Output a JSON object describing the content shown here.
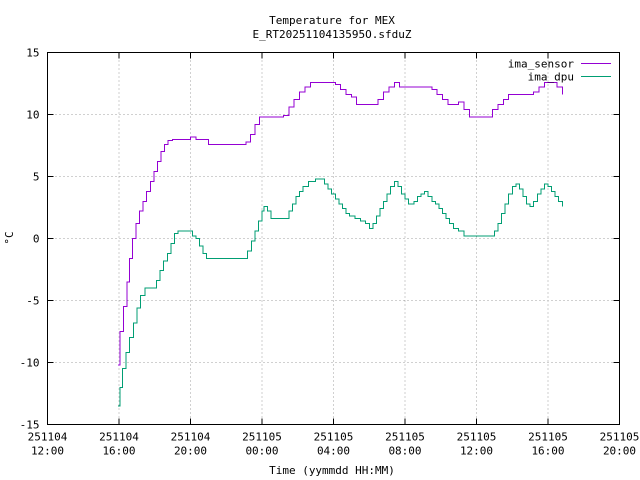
{
  "chart_data": {
    "type": "line",
    "title": "Temperature for MEX",
    "subtitle": "E_RT2025110413595O.sfduZ",
    "xlabel": "Time (yymmdd HH:MM)",
    "ylabel": "°C",
    "x_unit": "hours since 251104 12:00",
    "xlim": [
      0,
      32
    ],
    "ylim": [
      -15,
      15
    ],
    "grid": true,
    "legend_position": "top-right",
    "x_ticks": [
      {
        "v": 0,
        "date": "251104",
        "time": "12:00"
      },
      {
        "v": 4,
        "date": "251104",
        "time": "16:00"
      },
      {
        "v": 8,
        "date": "251104",
        "time": "20:00"
      },
      {
        "v": 12,
        "date": "251105",
        "time": "00:00"
      },
      {
        "v": 16,
        "date": "251105",
        "time": "04:00"
      },
      {
        "v": 20,
        "date": "251105",
        "time": "08:00"
      },
      {
        "v": 24,
        "date": "251105",
        "time": "12:00"
      },
      {
        "v": 28,
        "date": "251105",
        "time": "16:00"
      },
      {
        "v": 32,
        "date": "251105",
        "time": "20:00"
      }
    ],
    "y_ticks": [
      -15,
      -10,
      -5,
      0,
      5,
      10,
      15
    ],
    "series": [
      {
        "name": "ima_sensor",
        "color": "#9400d3",
        "points": [
          [
            3.95,
            -10.2
          ],
          [
            4.05,
            -7.5
          ],
          [
            4.25,
            -5.5
          ],
          [
            4.45,
            -3.5
          ],
          [
            4.6,
            -1.6
          ],
          [
            4.75,
            0
          ],
          [
            4.95,
            1.2
          ],
          [
            5.15,
            2.2
          ],
          [
            5.35,
            3.0
          ],
          [
            5.55,
            3.8
          ],
          [
            5.75,
            4.6
          ],
          [
            5.95,
            5.4
          ],
          [
            6.15,
            6.2
          ],
          [
            6.35,
            7.0
          ],
          [
            6.55,
            7.6
          ],
          [
            6.75,
            7.9
          ],
          [
            7.0,
            8.0
          ],
          [
            7.4,
            8.0
          ],
          [
            7.8,
            8.0
          ],
          [
            8.0,
            8.2
          ],
          [
            8.3,
            8.0
          ],
          [
            8.6,
            8.0
          ],
          [
            9.0,
            7.6
          ],
          [
            9.6,
            7.6
          ],
          [
            10.2,
            7.6
          ],
          [
            10.8,
            7.6
          ],
          [
            11.1,
            7.8
          ],
          [
            11.35,
            8.4
          ],
          [
            11.6,
            9.2
          ],
          [
            11.85,
            9.8
          ],
          [
            12.3,
            9.8
          ],
          [
            12.8,
            9.8
          ],
          [
            13.2,
            9.9
          ],
          [
            13.5,
            10.6
          ],
          [
            13.8,
            11.2
          ],
          [
            14.1,
            11.8
          ],
          [
            14.4,
            12.2
          ],
          [
            14.7,
            12.6
          ],
          [
            15.2,
            12.6
          ],
          [
            15.8,
            12.6
          ],
          [
            16.1,
            12.4
          ],
          [
            16.4,
            12.0
          ],
          [
            16.7,
            11.6
          ],
          [
            17.0,
            11.4
          ],
          [
            17.3,
            10.8
          ],
          [
            17.8,
            10.8
          ],
          [
            18.2,
            10.8
          ],
          [
            18.5,
            11.2
          ],
          [
            18.8,
            11.8
          ],
          [
            19.1,
            12.2
          ],
          [
            19.4,
            12.6
          ],
          [
            19.7,
            12.2
          ],
          [
            20.2,
            12.2
          ],
          [
            20.8,
            12.2
          ],
          [
            21.2,
            12.2
          ],
          [
            21.5,
            12.0
          ],
          [
            21.8,
            11.6
          ],
          [
            22.1,
            11.2
          ],
          [
            22.4,
            10.8
          ],
          [
            22.7,
            10.8
          ],
          [
            23.0,
            11.0
          ],
          [
            23.3,
            10.4
          ],
          [
            23.6,
            9.8
          ],
          [
            24.2,
            9.8
          ],
          [
            24.6,
            9.8
          ],
          [
            24.9,
            10.4
          ],
          [
            25.2,
            10.8
          ],
          [
            25.5,
            11.2
          ],
          [
            25.8,
            11.6
          ],
          [
            26.3,
            11.6
          ],
          [
            26.8,
            11.6
          ],
          [
            27.2,
            11.8
          ],
          [
            27.5,
            12.2
          ],
          [
            27.8,
            12.6
          ],
          [
            28.2,
            12.6
          ],
          [
            28.5,
            12.2
          ],
          [
            28.8,
            11.6
          ]
        ]
      },
      {
        "name": "ima_dpu",
        "color": "#009e73",
        "points": [
          [
            3.95,
            -13.5
          ],
          [
            4.05,
            -12.0
          ],
          [
            4.2,
            -10.5
          ],
          [
            4.4,
            -9.2
          ],
          [
            4.6,
            -8.0
          ],
          [
            4.8,
            -6.8
          ],
          [
            5.0,
            -5.6
          ],
          [
            5.2,
            -4.6
          ],
          [
            5.45,
            -4.0
          ],
          [
            5.8,
            -4.0
          ],
          [
            6.1,
            -3.4
          ],
          [
            6.3,
            -2.6
          ],
          [
            6.5,
            -1.8
          ],
          [
            6.7,
            -1.2
          ],
          [
            6.9,
            -0.4
          ],
          [
            7.1,
            0.4
          ],
          [
            7.3,
            0.6
          ],
          [
            7.6,
            0.6
          ],
          [
            7.9,
            0.6
          ],
          [
            8.1,
            0.2
          ],
          [
            8.3,
            0
          ],
          [
            8.5,
            -0.6
          ],
          [
            8.7,
            -1.2
          ],
          [
            8.9,
            -1.6
          ],
          [
            9.4,
            -1.6
          ],
          [
            10.0,
            -1.6
          ],
          [
            10.6,
            -1.6
          ],
          [
            11.0,
            -1.6
          ],
          [
            11.2,
            -1.0
          ],
          [
            11.4,
            -0.2
          ],
          [
            11.6,
            0.6
          ],
          [
            11.8,
            1.4
          ],
          [
            12.0,
            2.2
          ],
          [
            12.1,
            2.6
          ],
          [
            12.3,
            2.2
          ],
          [
            12.5,
            1.6
          ],
          [
            13.0,
            1.6
          ],
          [
            13.3,
            1.6
          ],
          [
            13.5,
            2.2
          ],
          [
            13.7,
            2.8
          ],
          [
            13.9,
            3.4
          ],
          [
            14.1,
            3.8
          ],
          [
            14.3,
            4.2
          ],
          [
            14.6,
            4.6
          ],
          [
            15.0,
            4.8
          ],
          [
            15.3,
            4.8
          ],
          [
            15.5,
            4.4
          ],
          [
            15.7,
            4.0
          ],
          [
            15.9,
            3.6
          ],
          [
            16.1,
            3.2
          ],
          [
            16.3,
            2.8
          ],
          [
            16.5,
            2.4
          ],
          [
            16.7,
            2.0
          ],
          [
            16.9,
            1.8
          ],
          [
            17.2,
            1.6
          ],
          [
            17.5,
            1.4
          ],
          [
            17.8,
            1.2
          ],
          [
            18.0,
            0.8
          ],
          [
            18.2,
            1.2
          ],
          [
            18.4,
            1.8
          ],
          [
            18.6,
            2.4
          ],
          [
            18.8,
            3.0
          ],
          [
            19.0,
            3.6
          ],
          [
            19.2,
            4.2
          ],
          [
            19.4,
            4.6
          ],
          [
            19.6,
            4.2
          ],
          [
            19.8,
            3.6
          ],
          [
            20.0,
            3.2
          ],
          [
            20.2,
            2.8
          ],
          [
            20.5,
            3.0
          ],
          [
            20.7,
            3.4
          ],
          [
            20.9,
            3.6
          ],
          [
            21.1,
            3.8
          ],
          [
            21.3,
            3.4
          ],
          [
            21.5,
            3.0
          ],
          [
            21.7,
            2.8
          ],
          [
            21.9,
            2.4
          ],
          [
            22.1,
            2.0
          ],
          [
            22.3,
            1.6
          ],
          [
            22.5,
            1.2
          ],
          [
            22.7,
            0.8
          ],
          [
            23.0,
            0.6
          ],
          [
            23.3,
            0.2
          ],
          [
            23.7,
            0.2
          ],
          [
            24.2,
            0.2
          ],
          [
            24.7,
            0.2
          ],
          [
            25.0,
            0.6
          ],
          [
            25.2,
            1.2
          ],
          [
            25.4,
            2.0
          ],
          [
            25.6,
            2.8
          ],
          [
            25.8,
            3.6
          ],
          [
            26.0,
            4.2
          ],
          [
            26.2,
            4.4
          ],
          [
            26.4,
            4.0
          ],
          [
            26.6,
            3.4
          ],
          [
            26.8,
            2.8
          ],
          [
            27.0,
            2.6
          ],
          [
            27.2,
            3.0
          ],
          [
            27.4,
            3.6
          ],
          [
            27.6,
            4.0
          ],
          [
            27.8,
            4.4
          ],
          [
            28.0,
            4.2
          ],
          [
            28.2,
            3.8
          ],
          [
            28.4,
            3.4
          ],
          [
            28.6,
            3.0
          ],
          [
            28.8,
            2.6
          ]
        ]
      }
    ]
  }
}
